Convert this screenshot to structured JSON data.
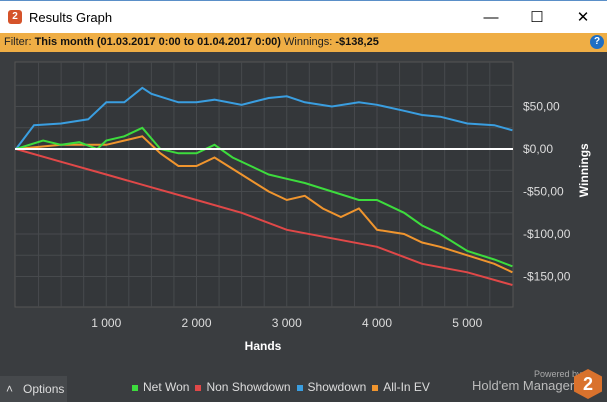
{
  "window": {
    "title": "Results Graph",
    "logo": "2",
    "minimize": "—",
    "maximize": "☐",
    "close": "✕"
  },
  "filter": {
    "label": "Filter:",
    "value": "This month (01.03.2017 0:00 to 01.04.2017 0:00)",
    "winnings_label": "Winnings:",
    "winnings_value": "-$138,25",
    "help": "?"
  },
  "options_label": "Options",
  "options_caret": "˄",
  "branding": {
    "powered": "Powered by",
    "name": "Hold'em Manager",
    "logo": "2"
  },
  "chart_data": {
    "type": "line",
    "xlabel": "Hands",
    "ylabel": "Winnings",
    "xlim": [
      0,
      5500
    ],
    "ylim": [
      -175,
      100
    ],
    "xticks": [
      1000,
      2000,
      3000,
      4000,
      5000
    ],
    "xtick_labels": [
      "1 000",
      "2 000",
      "3 000",
      "4 000",
      "5 000"
    ],
    "yticks": [
      50,
      0,
      -50,
      -100,
      -150
    ],
    "ytick_labels": [
      "$50,00",
      "$0,00",
      "-$50,00",
      "-$100,00",
      "-$150,00"
    ],
    "legend_position": "bottom",
    "series": [
      {
        "name": "Net Won",
        "color": "#3ddc3d",
        "points": [
          [
            0,
            0
          ],
          [
            300,
            10
          ],
          [
            500,
            5
          ],
          [
            700,
            8
          ],
          [
            900,
            0
          ],
          [
            1000,
            10
          ],
          [
            1200,
            15
          ],
          [
            1400,
            25
          ],
          [
            1600,
            0
          ],
          [
            1800,
            -5
          ],
          [
            2000,
            -5
          ],
          [
            2200,
            5
          ],
          [
            2400,
            -10
          ],
          [
            2600,
            -20
          ],
          [
            2800,
            -30
          ],
          [
            3000,
            -35
          ],
          [
            3200,
            -40
          ],
          [
            3500,
            -50
          ],
          [
            3800,
            -60
          ],
          [
            4000,
            -60
          ],
          [
            4300,
            -75
          ],
          [
            4500,
            -90
          ],
          [
            4700,
            -100
          ],
          [
            5000,
            -120
          ],
          [
            5300,
            -130
          ],
          [
            5500,
            -138
          ]
        ]
      },
      {
        "name": "Non Showdown",
        "color": "#e04848",
        "points": [
          [
            0,
            0
          ],
          [
            500,
            -15
          ],
          [
            1000,
            -30
          ],
          [
            1500,
            -45
          ],
          [
            2000,
            -60
          ],
          [
            2500,
            -75
          ],
          [
            3000,
            -95
          ],
          [
            3500,
            -105
          ],
          [
            4000,
            -115
          ],
          [
            4500,
            -135
          ],
          [
            5000,
            -145
          ],
          [
            5500,
            -160
          ]
        ]
      },
      {
        "name": "Showdown",
        "color": "#3a9ee0",
        "points": [
          [
            0,
            0
          ],
          [
            200,
            28
          ],
          [
            500,
            30
          ],
          [
            800,
            35
          ],
          [
            1000,
            55
          ],
          [
            1200,
            55
          ],
          [
            1400,
            72
          ],
          [
            1500,
            65
          ],
          [
            1800,
            55
          ],
          [
            2000,
            55
          ],
          [
            2200,
            58
          ],
          [
            2500,
            52
          ],
          [
            2800,
            60
          ],
          [
            3000,
            62
          ],
          [
            3200,
            55
          ],
          [
            3500,
            50
          ],
          [
            3800,
            55
          ],
          [
            4000,
            52
          ],
          [
            4300,
            45
          ],
          [
            4500,
            40
          ],
          [
            4700,
            38
          ],
          [
            5000,
            30
          ],
          [
            5300,
            28
          ],
          [
            5500,
            22
          ]
        ]
      },
      {
        "name": "All-In EV",
        "color": "#f0952e",
        "points": [
          [
            0,
            0
          ],
          [
            500,
            5
          ],
          [
            1000,
            5
          ],
          [
            1400,
            15
          ],
          [
            1600,
            -5
          ],
          [
            1800,
            -20
          ],
          [
            2000,
            -20
          ],
          [
            2200,
            -10
          ],
          [
            2500,
            -30
          ],
          [
            2800,
            -50
          ],
          [
            3000,
            -60
          ],
          [
            3200,
            -55
          ],
          [
            3400,
            -70
          ],
          [
            3600,
            -80
          ],
          [
            3800,
            -70
          ],
          [
            4000,
            -95
          ],
          [
            4300,
            -100
          ],
          [
            4500,
            -110
          ],
          [
            4700,
            -115
          ],
          [
            5000,
            -125
          ],
          [
            5300,
            -135
          ],
          [
            5500,
            -145
          ]
        ]
      }
    ]
  }
}
